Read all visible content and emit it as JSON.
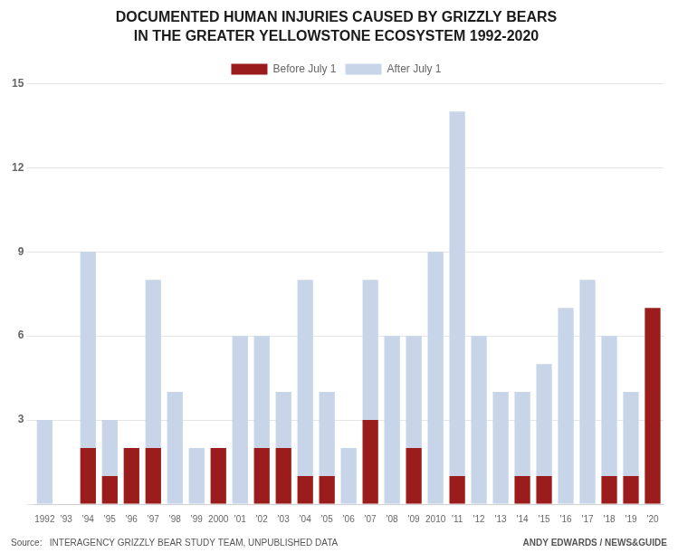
{
  "chart_data": {
    "type": "bar",
    "title": "DOCUMENTED HUMAN INJURIES CAUSED BY GRIZZLY BEARS",
    "subtitle": "IN THE GREATER YELLOWSTONE ECOSYSTEM 1992-2020",
    "categories": [
      "1992",
      "'93",
      "'94",
      "'95",
      "'96",
      "'97",
      "'98",
      "'99",
      "2000",
      "'01",
      "'02",
      "'03",
      "'04",
      "'05",
      "'06",
      "'07",
      "'08",
      "'09",
      "2010",
      "'11",
      "'12",
      "'13",
      "'14",
      "'15",
      "'16",
      "'17",
      "'18",
      "'19",
      "'20"
    ],
    "series": [
      {
        "name": "Before July 1",
        "color": "#9b1c1c",
        "values": [
          0,
          0,
          2,
          1,
          2,
          2,
          0,
          0,
          2,
          0,
          2,
          2,
          1,
          1,
          0,
          3,
          0,
          2,
          0,
          1,
          0,
          0,
          1,
          1,
          0,
          0,
          1,
          1,
          7
        ]
      },
      {
        "name": "After July 1",
        "color": "#c8d4e8",
        "values": [
          3,
          0,
          7,
          2,
          0,
          6,
          4,
          2,
          0,
          6,
          4,
          2,
          7,
          3,
          2,
          5,
          6,
          4,
          9,
          13,
          6,
          4,
          3,
          4,
          7,
          8,
          5,
          3,
          0
        ]
      }
    ],
    "stacked": true,
    "ylim": [
      0,
      15
    ],
    "yticks": [
      {
        "value": 0,
        "label": ""
      },
      3,
      6,
      9,
      12,
      15
    ],
    "grid": true,
    "legend": "top",
    "annotations": [
      "Source:   INTERAGENCY GRIZZLY BEAR STUDY TEAM, UNPUBLISHED DATA",
      "ANDY EDWARDS / NEWS&GUIDE"
    ]
  }
}
